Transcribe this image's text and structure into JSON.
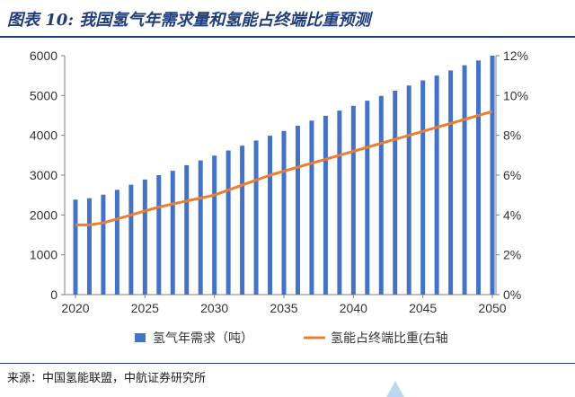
{
  "header": {
    "title": "图表 10: 我国氢气年需求量和氢能占终端比重预测"
  },
  "footer": {
    "source": "来源：中国氢能联盟，中航证券研究所"
  },
  "colors": {
    "bar": "#4472c4",
    "line": "#ed7d31",
    "title": "#1f3d7a",
    "axis_text": "#333333"
  },
  "chart_data": {
    "type": "bar",
    "title": "",
    "x": [
      2020,
      2021,
      2022,
      2023,
      2024,
      2025,
      2026,
      2027,
      2028,
      2029,
      2030,
      2031,
      2032,
      2033,
      2034,
      2035,
      2036,
      2037,
      2038,
      2039,
      2040,
      2041,
      2042,
      2043,
      2044,
      2045,
      2046,
      2047,
      2048,
      2049,
      2050
    ],
    "x_ticks": [
      "2020",
      "2025",
      "2030",
      "2035",
      "2040",
      "2045",
      "2050"
    ],
    "y_left": {
      "ticks": [
        "0",
        "1000",
        "2000",
        "3000",
        "4000",
        "5000",
        "6000"
      ],
      "ylim": [
        0,
        6000
      ]
    },
    "y_right": {
      "ticks": [
        "0%",
        "2%",
        "4%",
        "6%",
        "8%",
        "10%",
        "12%"
      ],
      "ylim": [
        0,
        12
      ]
    },
    "series": [
      {
        "name": "氢气年需求（吨）",
        "type": "bar",
        "axis": "left",
        "values": [
          2385,
          2420,
          2510,
          2630,
          2760,
          2890,
          3000,
          3110,
          3250,
          3370,
          3490,
          3620,
          3740,
          3870,
          3990,
          4110,
          4240,
          4370,
          4490,
          4620,
          4740,
          4870,
          4990,
          5120,
          5250,
          5380,
          5500,
          5630,
          5760,
          5880,
          6000
        ]
      },
      {
        "name": "氢能占终端比重(右轴",
        "type": "line",
        "axis": "right",
        "values": [
          3.5,
          3.5,
          3.6,
          3.8,
          4.0,
          4.2,
          4.4,
          4.55,
          4.7,
          4.85,
          5.0,
          5.25,
          5.5,
          5.75,
          6.0,
          6.2,
          6.4,
          6.6,
          6.8,
          7.0,
          7.2,
          7.4,
          7.6,
          7.8,
          8.0,
          8.2,
          8.4,
          8.6,
          8.8,
          9.0,
          9.2
        ]
      }
    ],
    "grid": false,
    "legend": "bottom"
  }
}
